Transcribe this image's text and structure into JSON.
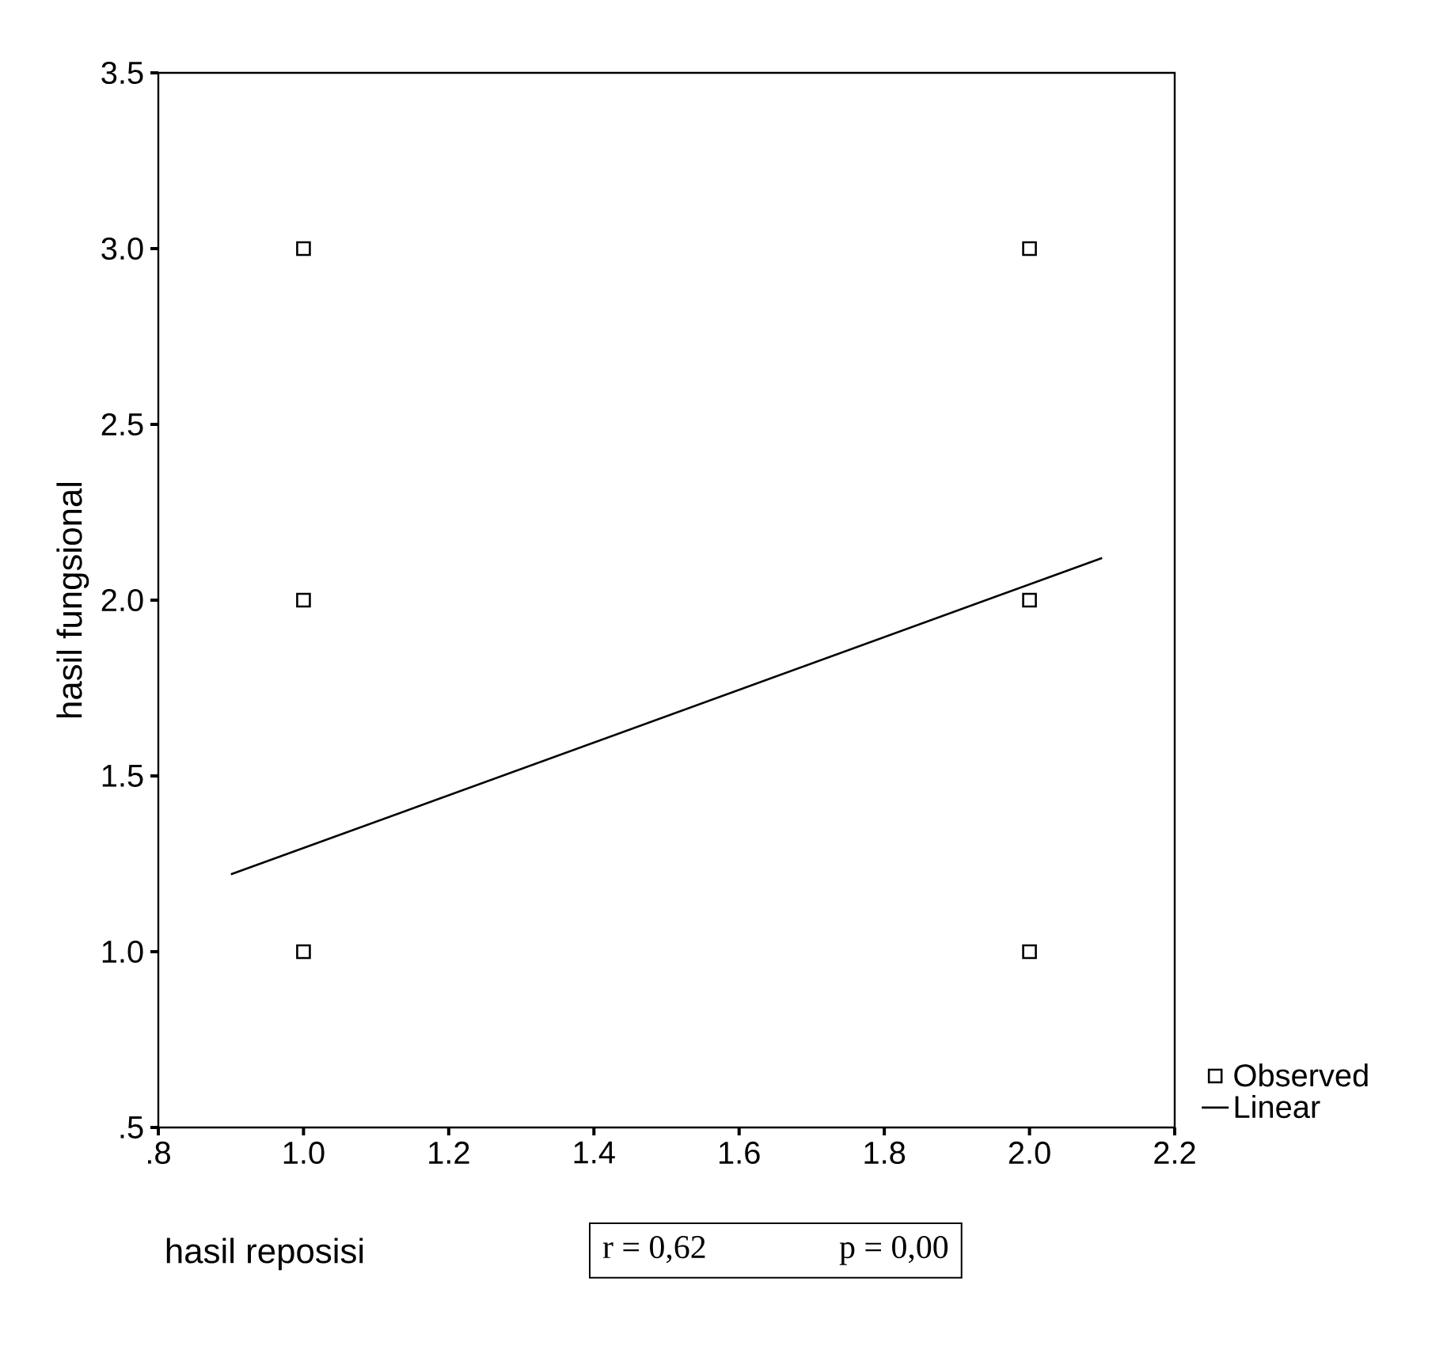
{
  "chart_data": {
    "type": "scatter",
    "xlabel": "hasil reposisi",
    "ylabel": "hasil fungsional",
    "xlim": [
      0.8,
      2.2
    ],
    "ylim": [
      0.5,
      3.5
    ],
    "xticks": [
      {
        "value": 0.8,
        "label": ".8"
      },
      {
        "value": 1.0,
        "label": "1.0"
      },
      {
        "value": 1.2,
        "label": "1.2"
      },
      {
        "value": 1.4,
        "label": "1.4"
      },
      {
        "value": 1.6,
        "label": "1.6"
      },
      {
        "value": 1.8,
        "label": "1.8"
      },
      {
        "value": 2.0,
        "label": "2.0"
      },
      {
        "value": 2.2,
        "label": "2.2"
      }
    ],
    "yticks": [
      {
        "value": 0.5,
        "label": ".5"
      },
      {
        "value": 1.0,
        "label": "1.0"
      },
      {
        "value": 1.5,
        "label": "1.5"
      },
      {
        "value": 2.0,
        "label": "2.0"
      },
      {
        "value": 2.5,
        "label": "2.5"
      },
      {
        "value": 3.0,
        "label": "3.0"
      },
      {
        "value": 3.5,
        "label": "3.5"
      }
    ],
    "legend": "bottom right",
    "grid": false,
    "series": [
      {
        "name": "Observed",
        "marker": "square",
        "color": "#000000",
        "x": [
          1,
          1,
          1,
          2,
          2,
          2
        ],
        "values": [
          3,
          2,
          1,
          3,
          2,
          1
        ]
      },
      {
        "name": "Linear",
        "type": "line",
        "marker": "none",
        "color": "#000000",
        "x": [
          0.9,
          2.1
        ],
        "values": [
          1.22,
          2.12
        ]
      }
    ],
    "annotations": [
      "r = 0,62",
      "p = 0,00"
    ]
  }
}
